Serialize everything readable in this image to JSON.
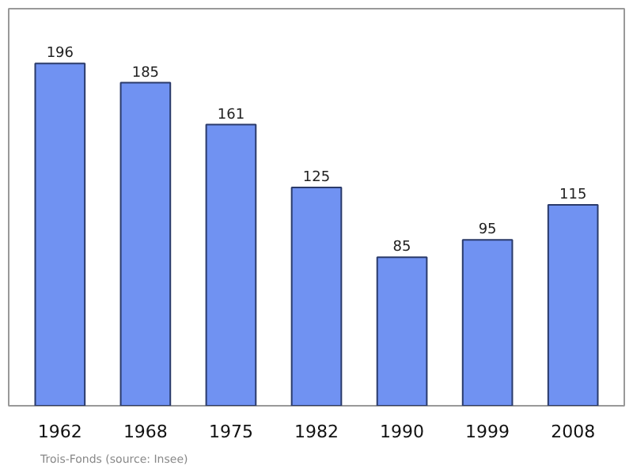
{
  "chart_data": {
    "type": "bar",
    "categories": [
      "1962",
      "1968",
      "1975",
      "1982",
      "1990",
      "1999",
      "2008"
    ],
    "values": [
      196,
      185,
      161,
      125,
      85,
      95,
      115
    ],
    "color": "#7092f2",
    "data_labels": true,
    "annotations": [
      "Trois-Fonds    (source: Insee)"
    ]
  }
}
